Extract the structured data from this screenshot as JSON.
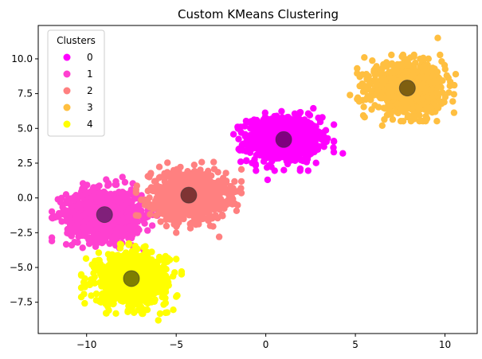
{
  "chart_data": {
    "type": "scatter",
    "title": "Custom KMeans Clustering",
    "xlabel": "",
    "ylabel": "",
    "xlim": [
      -12.7,
      11.8
    ],
    "ylim": [
      -9.75,
      12.4
    ],
    "x_ticks": [
      -10,
      -5,
      0,
      5,
      10
    ],
    "y_ticks": [
      -7.5,
      -5.0,
      -2.5,
      0.0,
      2.5,
      5.0,
      7.5,
      10.0
    ],
    "grid": false,
    "legend": {
      "title": "Clusters",
      "placement": "top-left",
      "entries": [
        "0",
        "1",
        "2",
        "3",
        "4"
      ]
    },
    "series": [
      {
        "name": "0",
        "color": "#ff00ff",
        "center": [
          1.0,
          4.2
        ],
        "spread": [
          1.0,
          0.8
        ],
        "outliers": [
          [
            4.3,
            3.2
          ],
          [
            0.1,
            1.3
          ],
          [
            -1.4,
            2.6
          ]
        ]
      },
      {
        "name": "1",
        "color": "#ff40d0",
        "center": [
          -9.0,
          -1.2
        ],
        "spread": [
          1.05,
          0.9
        ],
        "outliers": [
          [
            -11.6,
            -0.1
          ],
          [
            -10.5,
            -3.2
          ],
          [
            -9.5,
            -3.5
          ],
          [
            -8.0,
            1.5
          ]
        ]
      },
      {
        "name": "2",
        "color": "#ff8080",
        "center": [
          -4.3,
          0.2
        ],
        "spread": [
          1.05,
          0.85
        ],
        "outliers": [
          [
            -2.6,
            -2.8
          ],
          [
            -5.0,
            -2.5
          ],
          [
            -6.5,
            1.5
          ],
          [
            -2.0,
            0.5
          ]
        ]
      },
      {
        "name": "3",
        "color": "#ffbf40",
        "center": [
          7.9,
          7.9
        ],
        "spread": [
          1.0,
          0.85
        ],
        "outliers": [
          [
            10.6,
            8.9
          ],
          [
            9.6,
            11.5
          ],
          [
            6.5,
            5.2
          ],
          [
            5.5,
            10.1
          ],
          [
            4.7,
            7.4
          ],
          [
            9.0,
            5.7
          ]
        ]
      },
      {
        "name": "4",
        "color": "#ffff00",
        "center": [
          -7.5,
          -5.8
        ],
        "spread": [
          1.0,
          0.9
        ],
        "outliers": [
          [
            -10.1,
            -5.8
          ],
          [
            -5.0,
            -4.4
          ],
          [
            -5.0,
            -7.1
          ],
          [
            -6.0,
            -8.8
          ],
          [
            -8.9,
            -8.3
          ]
        ]
      }
    ],
    "centroids": {
      "color": "#5a0060",
      "points": [
        {
          "cluster": "0",
          "x": 1.0,
          "y": 4.2
        },
        {
          "cluster": "1",
          "x": -9.0,
          "y": -1.2
        },
        {
          "cluster": "2",
          "x": -4.3,
          "y": 0.2
        },
        {
          "cluster": "3",
          "x": 7.9,
          "y": 7.9
        },
        {
          "cluster": "4",
          "x": -7.5,
          "y": -5.8
        }
      ]
    },
    "centroid_fill": [
      "#800080",
      "#80207a",
      "#7f3434",
      "#7f5f10",
      "#7f7f00"
    ]
  }
}
